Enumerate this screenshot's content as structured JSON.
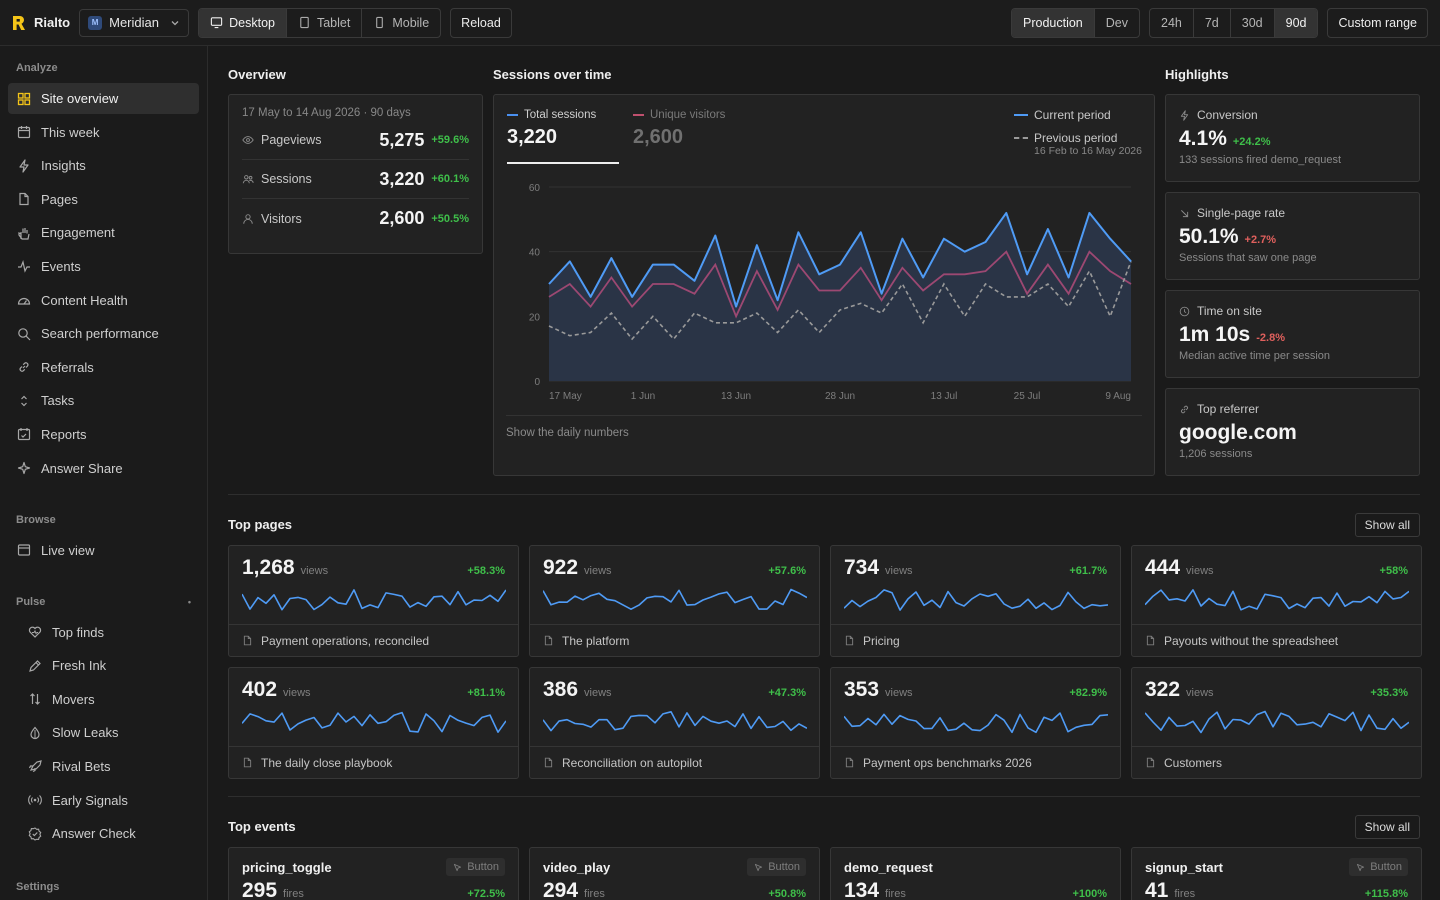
{
  "app": {
    "name": "Rialto",
    "site": "Meridian",
    "site_badge": "M"
  },
  "toolbar": {
    "devices": [
      {
        "label": "Desktop",
        "icon": "desktop-icon",
        "active": true
      },
      {
        "label": "Tablet",
        "icon": "tablet-icon",
        "active": false
      },
      {
        "label": "Mobile",
        "icon": "mobile-icon",
        "active": false
      }
    ],
    "reload": "Reload",
    "envs": [
      {
        "label": "Production",
        "active": true
      },
      {
        "label": "Dev",
        "active": false
      }
    ],
    "ranges": [
      {
        "label": "24h",
        "active": false
      },
      {
        "label": "7d",
        "active": false
      },
      {
        "label": "30d",
        "active": false
      },
      {
        "label": "90d",
        "active": true
      }
    ],
    "custom_range": "Custom range"
  },
  "sidebar": {
    "analyze_label": "Analyze",
    "analyze": [
      {
        "label": "Site overview",
        "icon": "grid-icon",
        "active": true
      },
      {
        "label": "This week",
        "icon": "calendar-icon"
      },
      {
        "label": "Insights",
        "icon": "bolt-icon"
      },
      {
        "label": "Pages",
        "icon": "page-icon"
      },
      {
        "label": "Engagement",
        "icon": "hand-icon"
      },
      {
        "label": "Events",
        "icon": "pulse-icon"
      },
      {
        "label": "Content Health",
        "icon": "gauge-icon"
      },
      {
        "label": "Search performance",
        "icon": "search-icon"
      },
      {
        "label": "Referrals",
        "icon": "link-icon"
      },
      {
        "label": "Tasks",
        "icon": "sort-icon"
      },
      {
        "label": "Reports",
        "icon": "report-icon"
      },
      {
        "label": "Answer Share",
        "icon": "sparkle-icon"
      }
    ],
    "browse_label": "Browse",
    "browse": [
      {
        "label": "Live view",
        "icon": "window-icon"
      }
    ],
    "pulse_label": "Pulse",
    "pulse": [
      {
        "label": "Top finds",
        "icon": "heart-icon"
      },
      {
        "label": "Fresh Ink",
        "icon": "pen-icon"
      },
      {
        "label": "Movers",
        "icon": "arrows-icon"
      },
      {
        "label": "Slow Leaks",
        "icon": "drop-icon"
      },
      {
        "label": "Rival Bets",
        "icon": "rocket-icon"
      },
      {
        "label": "Early Signals",
        "icon": "broadcast-icon"
      },
      {
        "label": "Answer Check",
        "icon": "check-badge-icon"
      }
    ],
    "settings_label": "Settings"
  },
  "overview": {
    "title": "Overview",
    "range": "17 May to 14 Aug 2026 · 90 days",
    "rows": [
      {
        "label": "Pageviews",
        "value": "5,275",
        "change": "+59.6%",
        "icon": "eye-icon"
      },
      {
        "label": "Sessions",
        "value": "3,220",
        "change": "+60.1%",
        "icon": "users-icon"
      },
      {
        "label": "Visitors",
        "value": "2,600",
        "change": "+50.5%",
        "icon": "user-icon"
      }
    ]
  },
  "sessions": {
    "title": "Sessions over time",
    "tabs": [
      {
        "label": "Total sessions",
        "value": "3,220",
        "color": "#4a90f0",
        "active": true
      },
      {
        "label": "Unique visitors",
        "value": "2,600",
        "color": "#c0506e",
        "active": false
      }
    ],
    "legend": {
      "current": "Current period",
      "previous": "Previous period",
      "previous_range": "16 Feb to 16 May 2026"
    },
    "footer": "Show the daily numbers"
  },
  "chart_data": {
    "type": "area",
    "x_tick_labels": [
      "17 May",
      "1 Jun",
      "13 Jun",
      "28 Jun",
      "13 Jul",
      "25 Jul",
      "9 Aug"
    ],
    "ylim": [
      0,
      60
    ],
    "y_ticks": [
      0,
      20,
      40,
      60
    ],
    "grid": true,
    "legend_position": "top-right",
    "series": [
      {
        "name": "Total sessions",
        "color": "#4f9bf5",
        "style": "area",
        "values": [
          30,
          37,
          26,
          38,
          26,
          36,
          36,
          31,
          45,
          23,
          42,
          25,
          46,
          33,
          36,
          46,
          27,
          44,
          32,
          44,
          40,
          43,
          52,
          33,
          47,
          32,
          52,
          44,
          37
        ]
      },
      {
        "name": "Unique visitors",
        "color": "#9c4872",
        "style": "line",
        "values": [
          26,
          30,
          23,
          32,
          23,
          30,
          30,
          27,
          36,
          20,
          34,
          22,
          36,
          28,
          28,
          35,
          25,
          35,
          28,
          33,
          33,
          34,
          40,
          27,
          36,
          27,
          40,
          34,
          30
        ]
      },
      {
        "name": "Previous period",
        "color": "#9a9a9a",
        "style": "dashed",
        "values": [
          17,
          14,
          15,
          21,
          13,
          20,
          13,
          21,
          18,
          18,
          21,
          15,
          22,
          15,
          22,
          24,
          21,
          30,
          18,
          30,
          20,
          30,
          26,
          26,
          30,
          23,
          34,
          20,
          37
        ]
      }
    ]
  },
  "highlights": {
    "title": "Highlights",
    "cards": [
      {
        "title": "Conversion",
        "value": "4.1%",
        "change": "+24.2%",
        "positive": true,
        "sub": "133 sessions fired demo_request",
        "icon": "bolt-icon"
      },
      {
        "title": "Single-page rate",
        "value": "50.1%",
        "change": "+2.7%",
        "positive": false,
        "sub": "Sessions that saw one page",
        "icon": "arrow-down-right-icon"
      },
      {
        "title": "Time on site",
        "value": "1m 10s",
        "change": "-2.8%",
        "positive": false,
        "sub": "Median active time per session",
        "icon": "clock-icon"
      },
      {
        "title": "Top referrer",
        "value": "google.com",
        "change": "",
        "positive": true,
        "sub": "1,206 sessions",
        "icon": "link-icon"
      }
    ]
  },
  "top_pages": {
    "title": "Top pages",
    "show_all": "Show all",
    "unit": "views",
    "items": [
      {
        "value": "1,268",
        "change": "+58.3%",
        "title": "Payment operations, reconciled"
      },
      {
        "value": "922",
        "change": "+57.6%",
        "title": "The platform"
      },
      {
        "value": "734",
        "change": "+61.7%",
        "title": "Pricing"
      },
      {
        "value": "444",
        "change": "+58%",
        "title": "Payouts without the spreadsheet"
      },
      {
        "value": "402",
        "change": "+81.1%",
        "title": "The daily close playbook"
      },
      {
        "value": "386",
        "change": "+47.3%",
        "title": "Reconciliation on autopilot"
      },
      {
        "value": "353",
        "change": "+82.9%",
        "title": "Payment ops benchmarks 2026"
      },
      {
        "value": "322",
        "change": "+35.3%",
        "title": "Customers"
      }
    ]
  },
  "top_events": {
    "title": "Top events",
    "show_all": "Show all",
    "unit": "fires",
    "tag": "Button",
    "items": [
      {
        "name": "pricing_toggle",
        "value": "295",
        "change": "+72.5%",
        "tag": true
      },
      {
        "name": "video_play",
        "value": "294",
        "change": "+50.8%",
        "tag": true
      },
      {
        "name": "demo_request",
        "value": "134",
        "change": "+100%",
        "tag": false
      },
      {
        "name": "signup_start",
        "value": "41",
        "change": "+115.8%",
        "tag": true
      }
    ]
  }
}
